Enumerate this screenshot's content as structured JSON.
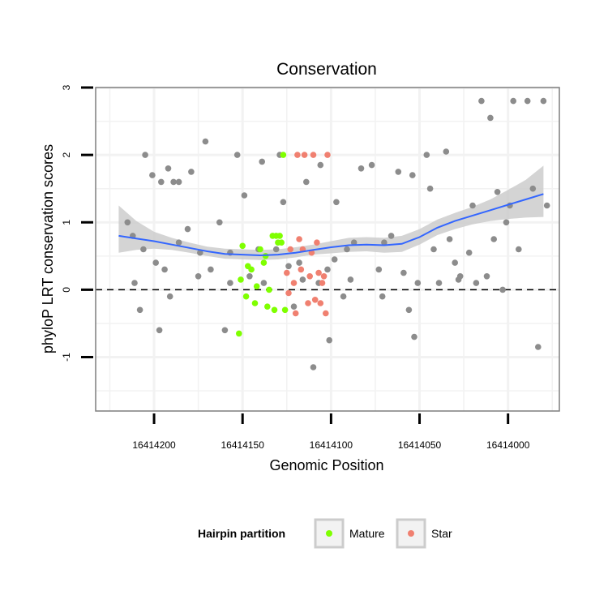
{
  "chart_data": {
    "type": "scatter",
    "title": "Conservation",
    "xlabel": "Genomic Position",
    "ylabel": "phyloP LRT conservation scores",
    "x_reversed": true,
    "xlim": [
      16414233,
      16413971
    ],
    "ylim": [
      -1.8,
      3
    ],
    "x_ticks": [
      16414200,
      16414150,
      16414100,
      16414050,
      16414000
    ],
    "x_tick_labels": [
      "16414200",
      "16414150",
      "16414100",
      "16414050",
      "16414000"
    ],
    "y_ticks": [
      -1,
      0,
      1,
      2,
      3
    ],
    "y_tick_labels": [
      "-1",
      "0",
      "1",
      "2",
      "3"
    ],
    "hline": 0,
    "grid": true,
    "legend": {
      "title": "Hairpin partition",
      "placement": "bottom",
      "items": [
        {
          "label": "Mature",
          "color": "#7fff00"
        },
        {
          "label": "Star",
          "color": "#f08070"
        }
      ]
    },
    "colors": {
      "other": "#8c8c8c",
      "smooth": "#3366ff",
      "ribbon": "#cccccc",
      "hline": "#000000",
      "panel_border": "#7f7f7f"
    },
    "smooth": {
      "x": [
        16414220,
        16414210,
        16414200,
        16414190,
        16414180,
        16414170,
        16414160,
        16414150,
        16414140,
        16414130,
        16414120,
        16414110,
        16414100,
        16414090,
        16414080,
        16414070,
        16414060,
        16414050,
        16414040,
        16414030,
        16414020,
        16414010,
        16414000,
        16413990,
        16413980
      ],
      "y": [
        0.8,
        0.76,
        0.72,
        0.67,
        0.62,
        0.57,
        0.53,
        0.52,
        0.51,
        0.52,
        0.55,
        0.59,
        0.63,
        0.66,
        0.67,
        0.66,
        0.68,
        0.78,
        0.92,
        1.02,
        1.1,
        1.18,
        1.26,
        1.34,
        1.42
      ],
      "lower": [
        0.55,
        0.59,
        0.61,
        0.59,
        0.55,
        0.5,
        0.46,
        0.45,
        0.44,
        0.45,
        0.48,
        0.52,
        0.54,
        0.56,
        0.57,
        0.55,
        0.56,
        0.67,
        0.81,
        0.9,
        0.97,
        1.02,
        1.05,
        1.07,
        1.08
      ],
      "upper": [
        1.25,
        1.02,
        0.86,
        0.77,
        0.7,
        0.64,
        0.61,
        0.6,
        0.59,
        0.6,
        0.63,
        0.67,
        0.72,
        0.77,
        0.78,
        0.77,
        0.8,
        0.9,
        1.04,
        1.14,
        1.23,
        1.34,
        1.48,
        1.63,
        1.84
      ]
    },
    "series": [
      {
        "name": "Other",
        "color": "#8c8c8c",
        "x": [
          16414215,
          16414212,
          16414211,
          16414208,
          16414206,
          16414205,
          16414201,
          16414199,
          16414197,
          16414196,
          16414194,
          16414192,
          16414191,
          16414189,
          16414186,
          16414186,
          16414181,
          16414179,
          16414175,
          16414174,
          16414171,
          16414168,
          16414163,
          16414160,
          16414157,
          16414157,
          16414153,
          16414149,
          16414146,
          16414141,
          16414139,
          16414138,
          16414131,
          16414129,
          16414127,
          16414124,
          16414121,
          16414118,
          16414116,
          16414114,
          16414110,
          16414107,
          16414106,
          16414102,
          16414101,
          16414098,
          16414097,
          16414093,
          16414091,
          16414089,
          16414087,
          16414083,
          16414077,
          16414073,
          16414071,
          16414070,
          16414066,
          16414062,
          16414059,
          16414056,
          16414054,
          16414053,
          16414051,
          16414046,
          16414044,
          16414042,
          16414039,
          16414035,
          16414033,
          16414030,
          16414028,
          16414027,
          16414022,
          16414020,
          16414018,
          16414015,
          16414012,
          16414010,
          16414008,
          16414006,
          16414003,
          16414001,
          16413999,
          16413997,
          16413994,
          16413989,
          16413986,
          16413983,
          16413980,
          16413978
        ],
        "y": [
          1.0,
          0.8,
          0.1,
          -0.3,
          0.6,
          2.0,
          1.7,
          0.4,
          -0.6,
          1.6,
          0.3,
          1.8,
          -0.1,
          1.6,
          1.6,
          0.7,
          0.9,
          1.75,
          0.2,
          0.55,
          2.2,
          0.3,
          1.0,
          -0.6,
          0.1,
          0.55,
          2.0,
          1.4,
          0.2,
          0.6,
          1.9,
          0.1,
          0.6,
          2.0,
          1.3,
          0.35,
          -0.25,
          0.4,
          0.15,
          1.6,
          -1.15,
          0.1,
          1.85,
          0.3,
          -0.75,
          0.45,
          1.3,
          -0.1,
          0.6,
          0.15,
          0.7,
          1.8,
          1.85,
          0.3,
          -0.1,
          0.7,
          0.8,
          1.75,
          0.25,
          -0.3,
          1.7,
          -0.7,
          0.1,
          2.0,
          1.5,
          0.6,
          0.1,
          2.05,
          0.75,
          0.4,
          0.15,
          0.2,
          0.55,
          1.25,
          0.1,
          2.8,
          0.2,
          2.55,
          0.75,
          1.45,
          0.0,
          1.0,
          1.25,
          2.8,
          0.6,
          2.8,
          1.5,
          -0.85,
          2.8,
          1.25
        ]
      },
      {
        "name": "Mature",
        "color": "#7fff00",
        "x": [
          16414152,
          16414151,
          16414150,
          16414148,
          16414147,
          16414145,
          16414143,
          16414142,
          16414140,
          16414138,
          16414137,
          16414136,
          16414135,
          16414133,
          16414132,
          16414131,
          16414130,
          16414129,
          16414128,
          16414127,
          16414126
        ],
        "y": [
          -0.65,
          0.15,
          0.65,
          -0.1,
          0.35,
          0.3,
          -0.2,
          0.05,
          0.6,
          0.4,
          0.5,
          -0.25,
          0.0,
          0.8,
          -0.3,
          0.8,
          0.7,
          0.8,
          0.7,
          2.0,
          -0.3
        ]
      },
      {
        "name": "Star",
        "color": "#f08070",
        "x": [
          16414125,
          16414124,
          16414123,
          16414121,
          16414120,
          16414119,
          16414118,
          16414117,
          16414116,
          16414115,
          16414113,
          16414112,
          16414111,
          16414110,
          16414109,
          16414108,
          16414107,
          16414106,
          16414105,
          16414104,
          16414103,
          16414102
        ],
        "y": [
          0.25,
          -0.05,
          0.6,
          0.1,
          -0.35,
          2.0,
          0.75,
          0.3,
          0.6,
          2.0,
          -0.2,
          0.2,
          0.55,
          2.0,
          -0.15,
          0.7,
          0.25,
          -0.2,
          0.1,
          0.2,
          -0.35,
          2.0
        ]
      }
    ]
  }
}
